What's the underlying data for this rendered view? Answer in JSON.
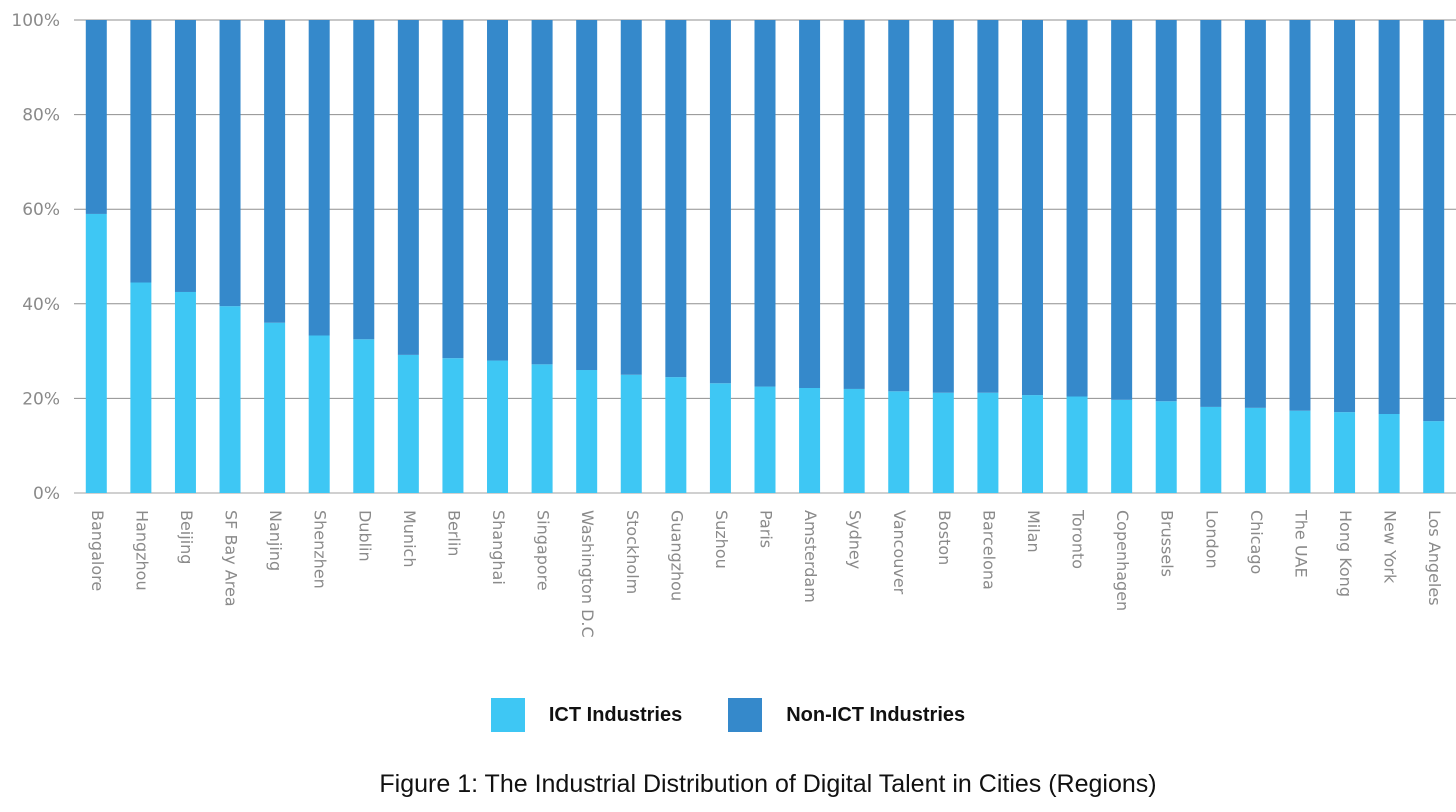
{
  "chart_data": {
    "type": "bar",
    "stacked": true,
    "normalized": true,
    "categories": [
      "Bangalore",
      "Hangzhou",
      "Beijing",
      "SF Bay Area",
      "Nanjing",
      "Shenzhen",
      "Dublin",
      "Munich",
      "Berlin",
      "Shanghai",
      "Singapore",
      "Washington D.C",
      "Stockholm",
      "Guangzhou",
      "Suzhou",
      "Paris",
      "Amsterdam",
      "Sydney",
      "Vancouver",
      "Boston",
      "Barcelona",
      "Milan",
      "Toronto",
      "Copenhagen",
      "Brussels",
      "London",
      "Chicago",
      "The UAE",
      "Hong Kong",
      "New York",
      "Los Angeles"
    ],
    "series": [
      {
        "name": "ICT Industries",
        "color": "#3ec7f4",
        "values": [
          59,
          44.5,
          42.5,
          39.5,
          36,
          33.3,
          32.5,
          29.2,
          28.5,
          28,
          27.2,
          26,
          25,
          24.5,
          23.2,
          22.5,
          22.2,
          22,
          21.5,
          21.2,
          21.2,
          20.7,
          20.4,
          19.7,
          19.4,
          18.2,
          18,
          17.4,
          17.1,
          16.7,
          15.2
        ]
      },
      {
        "name": "Non-ICT Industries",
        "color": "#3589cb",
        "values": [
          41,
          55.5,
          57.5,
          60.5,
          64,
          66.7,
          67.5,
          70.8,
          71.5,
          72,
          72.8,
          74,
          75,
          75.5,
          76.8,
          77.5,
          77.8,
          78,
          78.5,
          78.8,
          78.8,
          79.3,
          79.6,
          80.3,
          80.6,
          81.8,
          82,
          82.6,
          82.9,
          83.3,
          84.8
        ]
      }
    ],
    "yticks": [
      "0%",
      "20%",
      "40%",
      "60%",
      "80%",
      "100%"
    ],
    "ylim": [
      0,
      100
    ],
    "grid": true,
    "legend_position": "bottom",
    "caption": "Figure 1: The Industrial Distribution of Digital Talent in Cities (Regions)"
  },
  "legend": {
    "ict_label": "ICT Industries",
    "non_ict_label": "Non-ICT Industries"
  }
}
